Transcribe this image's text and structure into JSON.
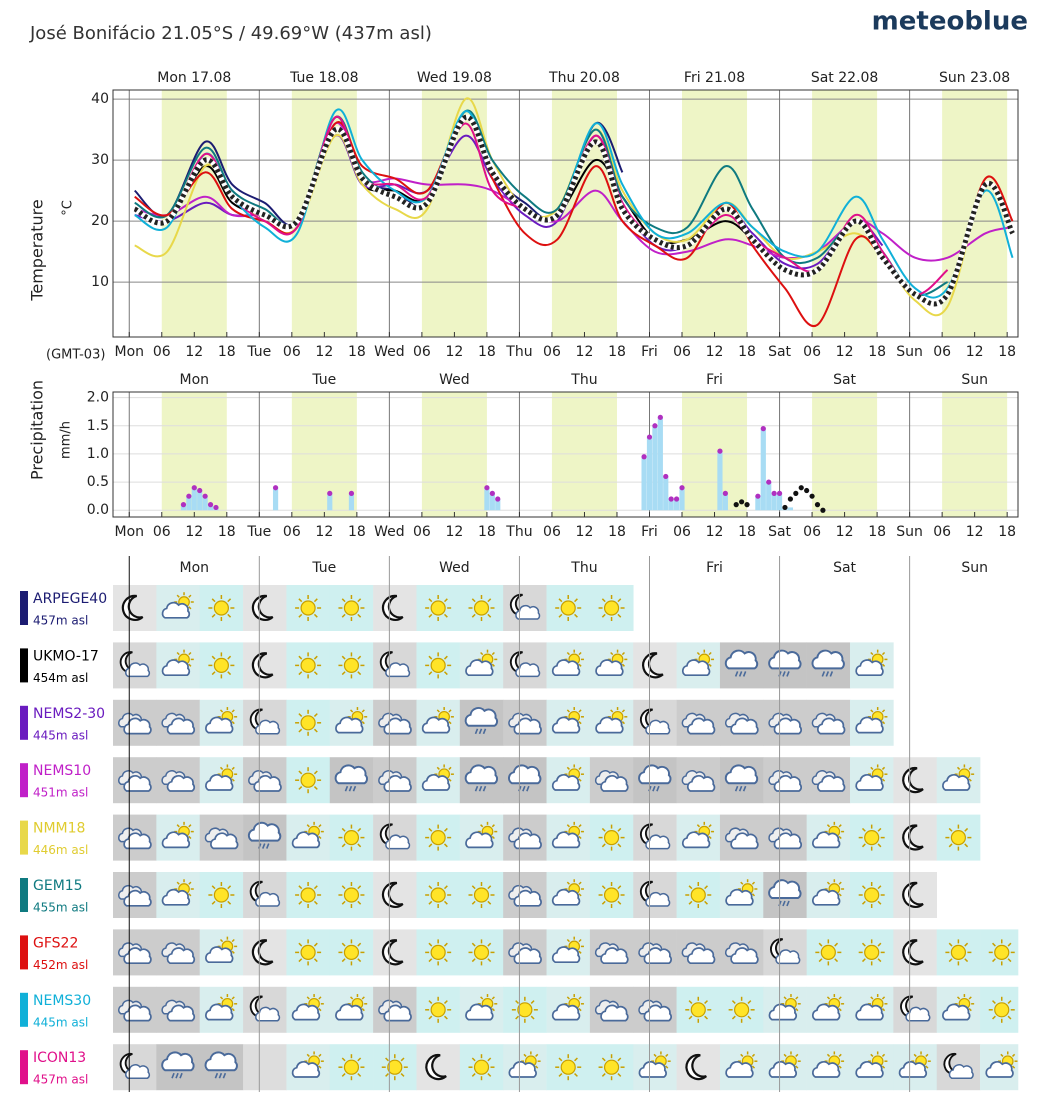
{
  "header": {
    "title": "José Bonifácio  21.05°S / 49.69°W (437m asl)",
    "brand": "meteoblue"
  },
  "chart_data": [
    {
      "type": "line",
      "ylabel": "Temperature",
      "unit": "°C",
      "timezone": "(GMT-03)",
      "day_labels": [
        "Mon 17.08",
        "Tue 18.08",
        "Wed 19.08",
        "Thu 20.08",
        "Fri 21.08",
        "Sat 22.08",
        "Sun 23.08"
      ],
      "xlim": [
        -3,
        164
      ],
      "ylim": [
        1,
        41.5
      ],
      "yticks": [
        10,
        20,
        30,
        40
      ],
      "grid": true,
      "xticks": [
        {
          "value": 0,
          "label": "Mon"
        },
        {
          "value": 6,
          "label": "06"
        },
        12,
        18,
        {
          "value": 24,
          "label": "Tue"
        },
        {
          "value": 30,
          "label": "06"
        },
        {
          "value": 36,
          "label": "12"
        },
        {
          "value": 42,
          "label": "18"
        },
        {
          "value": 48,
          "label": "Wed"
        },
        {
          "value": 54,
          "label": "06"
        },
        {
          "value": 60,
          "label": "12"
        },
        {
          "value": 66,
          "label": "18"
        },
        {
          "value": 72,
          "label": "Thu"
        },
        {
          "value": 78,
          "label": "06"
        },
        {
          "value": 84,
          "label": "12"
        },
        {
          "value": 90,
          "label": "18"
        },
        {
          "value": 96,
          "label": "Fri"
        },
        {
          "value": 102,
          "label": "06"
        },
        {
          "value": 108,
          "label": "12"
        },
        {
          "value": 114,
          "label": "18"
        },
        {
          "value": 120,
          "label": "Sat"
        },
        {
          "value": 126,
          "label": "06"
        },
        {
          "value": 132,
          "label": "12"
        },
        {
          "value": 138,
          "label": "18"
        },
        {
          "value": 144,
          "label": "Sun"
        },
        {
          "value": 150,
          "label": "06"
        },
        {
          "value": 156,
          "label": "12"
        },
        {
          "value": 162,
          "label": "18"
        }
      ],
      "x": [
        1,
        7,
        14,
        19,
        25,
        31,
        38,
        43,
        49,
        55,
        62,
        67,
        73,
        79,
        86,
        91,
        97,
        103,
        110,
        115,
        121,
        127,
        134,
        139,
        145,
        151,
        158,
        163
      ],
      "series": [
        {
          "name": "ARPEGE40",
          "color": "#1c1c72",
          "values": [
            25,
            21,
            33,
            26,
            23,
            20,
            37,
            27,
            25,
            23,
            38,
            28,
            23,
            21,
            36,
            28,
            null,
            null,
            null,
            null,
            null,
            null,
            null,
            null,
            null,
            null,
            null,
            null
          ]
        },
        {
          "name": "UKMO-17",
          "color": "#000000",
          "values": [
            22,
            20,
            29,
            23,
            21,
            20,
            35,
            26,
            25,
            24,
            37,
            27,
            22,
            21,
            30,
            24,
            17,
            17,
            20,
            17,
            12,
            12,
            20,
            15,
            null,
            null,
            null,
            null
          ]
        },
        {
          "name": "NEMS2-30",
          "color": "#6a1bbf",
          "values": [
            21,
            20,
            23,
            21,
            21,
            20,
            34,
            26,
            26,
            25,
            34,
            27,
            21,
            20,
            34,
            23,
            16,
            16,
            22,
            18,
            13,
            13,
            20,
            16,
            null,
            null,
            null,
            null
          ]
        },
        {
          "name": "NEMS10",
          "color": "#c020c8",
          "values": [
            22,
            21,
            24,
            21,
            21,
            20,
            36,
            27,
            27,
            26,
            26,
            25,
            22,
            20,
            25,
            20,
            15,
            15,
            17,
            16,
            14,
            15,
            20,
            18,
            14,
            14,
            18,
            19
          ]
        },
        {
          "name": "NMM18",
          "color": "#e8d84a",
          "values": [
            16,
            15,
            29,
            24,
            20,
            19,
            34,
            26,
            22,
            22,
            40,
            30,
            22,
            22,
            35,
            25,
            18,
            17,
            23,
            19,
            14,
            15,
            18,
            14,
            7,
            6,
            26,
            18
          ]
        },
        {
          "name": "GEM15",
          "color": "#0f7a80",
          "values": [
            23,
            21,
            32,
            25,
            22,
            20,
            37,
            28,
            24,
            23,
            38,
            30,
            24,
            22,
            35,
            24,
            19,
            19,
            29,
            22,
            14,
            14,
            20,
            15,
            8,
            10,
            null,
            null
          ]
        },
        {
          "name": "GFS22",
          "color": "#dd1010",
          "values": [
            24,
            21,
            28,
            22,
            20,
            19,
            36,
            29,
            27,
            25,
            37,
            27,
            18,
            17,
            29,
            20,
            16,
            14,
            23,
            16,
            9,
            3,
            17,
            14,
            8,
            8,
            27,
            20
          ]
        },
        {
          "name": "NEMS30",
          "color": "#10b0d8",
          "values": [
            21,
            19,
            31,
            24,
            19,
            18,
            38,
            30,
            25,
            24,
            38,
            28,
            22,
            21,
            36,
            26,
            18,
            18,
            23,
            19,
            15,
            15,
            24,
            17,
            9,
            9,
            25,
            14
          ]
        },
        {
          "name": "ICON13",
          "color": "#e0108a",
          "values": [
            22,
            20,
            31,
            24,
            20,
            19,
            37,
            27,
            26,
            24,
            36,
            25,
            22,
            21,
            34,
            23,
            17,
            16,
            21,
            17,
            14,
            12,
            21,
            15,
            8,
            12,
            null,
            null
          ]
        },
        {
          "color": "#222222",
          "style": "dotted",
          "values": [
            22,
            20,
            30,
            24,
            21,
            20,
            35,
            27,
            24,
            23,
            37,
            28,
            22,
            21,
            33,
            22,
            17,
            16,
            22,
            17,
            12,
            12,
            20,
            14,
            8,
            8,
            26,
            18
          ]
        }
      ]
    },
    {
      "type": "bar",
      "ylabel": "Precipitation",
      "unit": "mm/h",
      "xlim": [
        -3,
        164
      ],
      "ylim": [
        -0.12,
        2.1
      ],
      "yticks": [
        {
          "value": 0,
          "label": "0.0"
        },
        0.5,
        {
          "value": 1,
          "label": "1.0"
        },
        1.5,
        {
          "value": 2,
          "label": "2.0"
        }
      ],
      "xticks": [
        {
          "value": 0,
          "label": "Mon"
        },
        {
          "value": 6,
          "label": "06"
        },
        12,
        18,
        {
          "value": 24,
          "label": "Tue"
        },
        {
          "value": 30,
          "label": "06"
        },
        {
          "value": 36,
          "label": "12"
        },
        {
          "value": 42,
          "label": "18"
        },
        {
          "value": 48,
          "label": "Wed"
        },
        {
          "value": 54,
          "label": "06"
        },
        {
          "value": 60,
          "label": "12"
        },
        {
          "value": 66,
          "label": "18"
        },
        {
          "value": 72,
          "label": "Thu"
        },
        {
          "value": 78,
          "label": "06"
        },
        {
          "value": 84,
          "label": "12"
        },
        {
          "value": 90,
          "label": "18"
        },
        {
          "value": 96,
          "label": "Fri"
        },
        {
          "value": 102,
          "label": "06"
        },
        {
          "value": 108,
          "label": "12"
        },
        {
          "value": 114,
          "label": "18"
        },
        {
          "value": 120,
          "label": "Sat"
        },
        {
          "value": 126,
          "label": "06"
        },
        {
          "value": 132,
          "label": "12"
        },
        {
          "value": 138,
          "label": "18"
        },
        {
          "value": 144,
          "label": "Sun"
        },
        {
          "value": 150,
          "label": "06"
        },
        {
          "value": 156,
          "label": "12"
        },
        {
          "value": 162,
          "label": "18"
        }
      ],
      "x": [
        10,
        11,
        12,
        13,
        14,
        15,
        16,
        27,
        37,
        41,
        66,
        67,
        68,
        95,
        96,
        97,
        98,
        99,
        100,
        101,
        102,
        109,
        110,
        112,
        113,
        114,
        116,
        117,
        118,
        119,
        120,
        121,
        122,
        123,
        124,
        125,
        126,
        127,
        128
      ],
      "series": [
        {
          "style": "bar",
          "color": "#a8dcf4",
          "values": [
            0.1,
            0.25,
            0.4,
            0.35,
            0.25,
            0.1,
            0.05,
            0.4,
            0.3,
            0.3,
            0.4,
            0.3,
            0.2,
            0.95,
            1.3,
            1.5,
            1.65,
            0.6,
            0.2,
            0.2,
            0.4,
            1.05,
            0.3,
            null,
            null,
            null,
            0.25,
            1.45,
            0.5,
            0.3,
            0.3,
            0.05,
            0.05,
            null,
            null,
            null,
            null,
            null,
            null
          ]
        },
        {
          "style": "dots",
          "color": "#b030c0",
          "values": [
            0.1,
            0.25,
            0.4,
            0.35,
            0.25,
            0.1,
            0.05,
            0.4,
            0.3,
            0.3,
            0.4,
            0.3,
            0.2,
            0.95,
            1.3,
            1.5,
            1.65,
            0.6,
            0.2,
            0.2,
            0.4,
            1.05,
            0.3,
            null,
            null,
            null,
            0.25,
            1.45,
            0.5,
            0.3,
            0.3,
            null,
            null,
            null,
            null,
            null,
            null,
            null,
            null
          ]
        },
        {
          "style": "dots",
          "color": "#111111",
          "values": [
            null,
            null,
            null,
            null,
            null,
            null,
            null,
            null,
            null,
            null,
            null,
            null,
            null,
            null,
            null,
            null,
            null,
            null,
            null,
            null,
            null,
            null,
            null,
            0.1,
            0.15,
            0.1,
            null,
            null,
            null,
            null,
            null,
            0.05,
            0.2,
            0.3,
            0.4,
            0.35,
            0.25,
            0.1,
            0.0
          ]
        }
      ]
    }
  ],
  "models": {
    "rows": [
      {
        "altitude": "457m asl"
      },
      {
        "altitude": "454m asl"
      },
      {
        "altitude": "445m asl"
      },
      {
        "altitude": "451m asl"
      },
      {
        "altitude": "446m asl"
      },
      {
        "altitude": "455m asl"
      },
      {
        "altitude": "452m asl"
      },
      {
        "altitude": "445m asl"
      },
      {
        "altitude": "457m asl"
      }
    ]
  }
}
